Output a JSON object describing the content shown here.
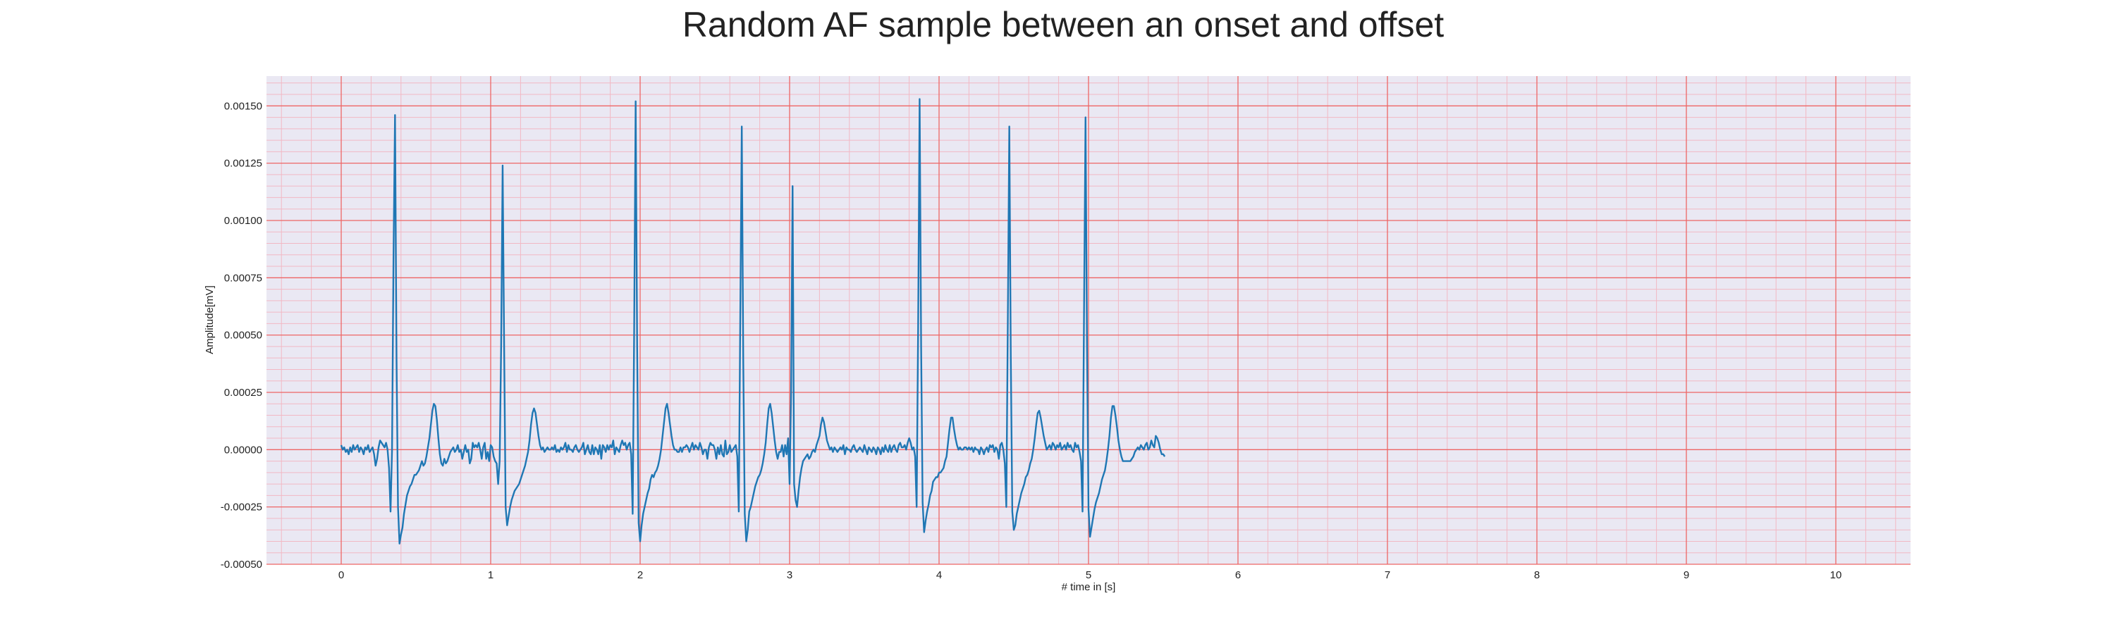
{
  "chart_data": {
    "type": "line",
    "title": "Random AF sample between an onset and offset",
    "xlabel": "# time in [s]",
    "ylabel": "Amplitude[mV]",
    "xlim": [
      -0.5,
      10.5
    ],
    "ylim": [
      -0.0005,
      0.00163
    ],
    "x_ticks": [
      0,
      1,
      2,
      3,
      4,
      5,
      6,
      7,
      8,
      9,
      10
    ],
    "x_tick_labels": [
      "0",
      "1",
      "2",
      "3",
      "4",
      "5",
      "6",
      "7",
      "8",
      "9",
      "10"
    ],
    "y_ticks": [
      -0.0005,
      -0.00025,
      0.0,
      0.00025,
      0.0005,
      0.00075,
      0.001,
      0.00125,
      0.0015
    ],
    "y_tick_labels": [
      "-0.00050",
      "-0.00025",
      "0.00000",
      "0.00025",
      "0.00050",
      "0.00075",
      "0.00100",
      "0.00125",
      "0.00150"
    ],
    "grid": true,
    "grid_minor": true,
    "colors": {
      "line": "#1f77b4",
      "background": "#eae8f3",
      "grid_major": "#ee6666",
      "grid_minor": "#f2b8c4"
    },
    "series": [
      {
        "sample_rate_hz": 100,
        "values": [
          2e-05,
          0.0,
          1e-05,
          -1e-05,
          0.0,
          -2e-05,
          1e-05,
          -1e-05,
          2e-05,
          0.0,
          1e-05,
          2e-05,
          -1e-05,
          1e-05,
          0.0,
          -2e-05,
          1e-05,
          0.0,
          2e-05,
          -1e-05,
          0.0,
          1e-05,
          -2e-05,
          -7e-05,
          -4e-05,
          1e-05,
          4e-05,
          3e-05,
          2e-05,
          1e-05,
          3e-05,
          0.0,
          -8e-05,
          -0.00027,
          0.0,
          0.00085,
          0.00146,
          0.0004,
          -0.00025,
          -0.00041,
          -0.00037,
          -0.00034,
          -0.00028,
          -0.00024,
          -0.0002,
          -0.00018,
          -0.00016,
          -0.00015,
          -0.00013,
          -0.00011,
          -0.00011,
          -0.0001,
          -9e-05,
          -7e-05,
          -5e-05,
          -7e-05,
          -6e-05,
          -3e-05,
          1e-05,
          5e-05,
          0.00011,
          0.00017,
          0.0002,
          0.00019,
          0.00013,
          5e-05,
          -2e-05,
          -6e-05,
          -7e-05,
          -4e-05,
          -6e-05,
          -5e-05,
          -3e-05,
          -1e-05,
          0.0,
          1e-05,
          -1e-05,
          0.0,
          2e-05,
          -1e-05,
          0.0,
          -4e-05,
          -1e-05,
          2e-05,
          -1e-05,
          0.0,
          -6e-05,
          -4e-05,
          3e-05,
          1e-05,
          2e-05,
          1e-05,
          3e-05,
          0.0,
          -4e-05,
          1e-05,
          3e-05,
          -4e-05,
          -1e-05,
          -5e-05,
          2e-05,
          1e-05,
          -3e-05,
          -5e-05,
          -6e-05,
          -0.00015,
          -5e-05,
          0.00045,
          0.00124,
          0.00045,
          -0.00025,
          -0.00033,
          -0.00029,
          -0.00025,
          -0.00022,
          -0.0002,
          -0.00018,
          -0.00017,
          -0.00016,
          -0.00015,
          -0.00013,
          -0.00011,
          -9e-05,
          -7e-05,
          -4e-05,
          -1e-05,
          4e-05,
          0.00011,
          0.00016,
          0.00018,
          0.00016,
          0.00011,
          6e-05,
          2e-05,
          0.0,
          1e-05,
          -1e-05,
          0.0,
          1e-05,
          0.0,
          0.0,
          1e-05,
          0.0,
          2e-05,
          -1e-05,
          0.0,
          -1e-05,
          1e-05,
          0.0,
          1e-05,
          3e-05,
          -1e-05,
          2e-05,
          0.0,
          0.0,
          -1e-05,
          1e-05,
          2e-05,
          0.0,
          -1e-05,
          0.0,
          1e-05,
          3e-05,
          -2e-05,
          0.0,
          2e-05,
          -1e-05,
          -2e-05,
          2e-05,
          -2e-05,
          1e-05,
          0.0,
          -2e-05,
          2e-05,
          -4e-05,
          2e-05,
          1e-05,
          -1e-05,
          2e-05,
          0.0,
          2e-05,
          1e-05,
          4e-05,
          -2e-05,
          1e-05,
          0.0,
          -1e-05,
          2e-05,
          4e-05,
          2e-05,
          3e-05,
          0.0,
          2e-05,
          3e-05,
          -2e-05,
          -0.00028,
          0.00052,
          0.00152,
          0.00045,
          -0.00032,
          -0.0004,
          -0.00033,
          -0.00028,
          -0.00025,
          -0.00022,
          -0.00019,
          -0.00017,
          -0.00013,
          -0.00011,
          -0.00012,
          -0.0001,
          -9e-05,
          -7e-05,
          -4e-05,
          0.0,
          6e-05,
          0.00012,
          0.00018,
          0.0002,
          0.00016,
          0.00011,
          6e-05,
          2e-05,
          0.0,
          0.0,
          -1e-05,
          -1e-05,
          1e-05,
          -1e-05,
          1e-05,
          1e-05,
          2e-05,
          1e-05,
          -1e-05,
          1e-05,
          3e-05,
          0.0,
          2e-05,
          1e-05,
          0.0,
          3e-05,
          1e-05,
          -2e-05,
          0.0,
          0.0,
          -4e-05,
          1e-05,
          3e-05,
          2e-05,
          2e-05,
          0.0,
          -4e-05,
          1e-05,
          -2e-05,
          2e-05,
          -2e-05,
          -3e-05,
          4e-05,
          -2e-05,
          -1e-05,
          2e-05,
          -1e-05,
          0.0,
          1e-05,
          2e-05,
          -3e-05,
          -0.00027,
          0.00058,
          0.00141,
          0.00038,
          -0.00028,
          -0.0004,
          -0.00035,
          -0.00027,
          -0.00025,
          -0.00022,
          -0.00019,
          -0.00016,
          -0.00014,
          -0.00012,
          -0.00011,
          -9e-05,
          -6e-05,
          -2e-05,
          3e-05,
          0.00011,
          0.00018,
          0.0002,
          0.00016,
          0.0001,
          4e-05,
          -1e-05,
          -4e-05,
          -1e-05,
          -1e-05,
          2e-05,
          -3e-05,
          2e-05,
          -2e-05,
          5e-05,
          -0.00015,
          0.00025,
          0.00115,
          -0.00015,
          -0.00022,
          -0.00025,
          -0.00018,
          -0.00012,
          -8e-05,
          -5e-05,
          -4e-05,
          -3e-05,
          -2e-05,
          -4e-05,
          -3e-05,
          -1e-05,
          0.0,
          -1e-05,
          2e-05,
          4e-05,
          6e-05,
          0.00011,
          0.00014,
          0.00012,
          8e-05,
          4e-05,
          2e-05,
          0.0,
          1e-05,
          -1e-05,
          1e-05,
          0.0,
          -1e-05,
          0.0,
          1e-05,
          0.0,
          2e-05,
          -2e-05,
          1e-05,
          0.0,
          0.0,
          -1e-05,
          1e-05,
          2e-05,
          0.0,
          -1e-05,
          0.0,
          1e-05,
          0.0,
          -1e-05,
          2e-05,
          0.0,
          -2e-05,
          1e-05,
          0.0,
          -1e-05,
          1e-05,
          0.0,
          -2e-05,
          1e-05,
          0.0,
          -2e-05,
          1e-05,
          -1e-05,
          2e-05,
          0.0,
          -1e-05,
          2e-05,
          -1e-05,
          1e-05,
          2e-05,
          0.0,
          -1e-05,
          2e-05,
          3e-05,
          1e-05,
          1e-05,
          2e-05,
          0.0,
          3e-05,
          5e-05,
          3e-05,
          0.0,
          1e-05,
          -3e-05,
          -0.00025,
          0.00053,
          0.00153,
          0.00045,
          -0.00023,
          -0.00036,
          -0.00031,
          -0.00027,
          -0.00024,
          -0.0002,
          -0.00018,
          -0.00014,
          -0.00013,
          -0.00012,
          -0.00012,
          -0.0001,
          -0.0001,
          -9e-05,
          -8e-05,
          -5e-05,
          -3e-05,
          3e-05,
          9e-05,
          0.00014,
          0.00014,
          9e-05,
          5e-05,
          2e-05,
          0.0,
          1e-05,
          0.0,
          0.0,
          1e-05,
          1e-05,
          0.0,
          1e-05,
          0.0,
          1e-05,
          -1e-05,
          1e-05,
          0.0,
          0.0,
          -2e-05,
          1e-05,
          0.0,
          -2e-05,
          0.0,
          1e-05,
          -1e-05,
          2e-05,
          1e-05,
          2e-05,
          -1e-05,
          1e-05,
          0.0,
          -4e-05,
          2e-05,
          3e-05,
          0.0,
          -6e-05,
          -0.00025,
          0.00055,
          0.00141,
          0.0004,
          -0.00027,
          -0.00035,
          -0.00033,
          -0.00028,
          -0.00025,
          -0.00022,
          -0.00019,
          -0.00017,
          -0.00015,
          -0.00012,
          -0.00011,
          -9e-05,
          -6e-05,
          -4e-05,
          0.0,
          5e-05,
          0.00011,
          0.00016,
          0.00017,
          0.00014,
          0.0001,
          6e-05,
          3e-05,
          0.0,
          1e-05,
          2e-05,
          0.0,
          3e-05,
          2e-05,
          0.0,
          2e-05,
          1e-05,
          3e-05,
          0.0,
          1e-05,
          2e-05,
          0.0,
          3e-05,
          1e-05,
          2e-05,
          0.0,
          -1e-05,
          3e-05,
          1e-05,
          2e-05,
          -1e-05,
          -5e-05,
          -0.00027,
          0.0006,
          0.00145,
          0.00045,
          -0.00026,
          -0.00038,
          -0.00034,
          -0.0003,
          -0.00026,
          -0.00023,
          -0.00021,
          -0.00019,
          -0.00016,
          -0.00013,
          -0.00011,
          -9e-05,
          -5e-05,
          0.0,
          6e-05,
          0.00014,
          0.00019,
          0.00019,
          0.00015,
          0.0001,
          4e-05,
          0.0,
          -3e-05,
          -5e-05,
          -5e-05,
          -5e-05,
          -5e-05,
          -5e-05,
          -5e-05,
          -4e-05,
          -3e-05,
          -1e-05,
          0.0,
          1e-05,
          0.0,
          2e-05,
          1e-05,
          0.0,
          2e-05,
          3e-05,
          0.0,
          1e-05,
          4e-05,
          2e-05,
          1e-05,
          6e-05,
          5e-05,
          3e-05,
          0.0,
          -2e-05,
          -2e-05,
          -3e-05
        ]
      }
    ]
  }
}
